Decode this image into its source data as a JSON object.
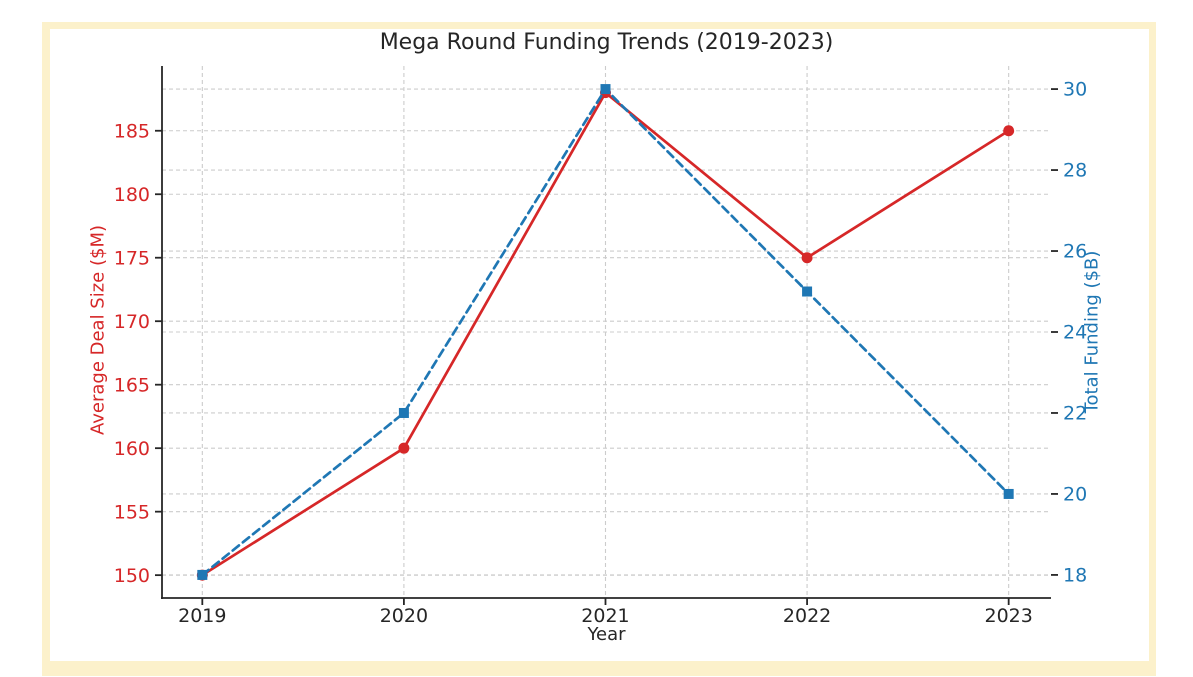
{
  "page": {
    "background": "#ffffff",
    "frame_border_color": "#fcf1cb",
    "text_color": "#262626",
    "spine_color": "#262626"
  },
  "chart_data": {
    "type": "line",
    "title": "Mega Round Funding Trends (2019-2023)",
    "xlabel": "Year",
    "categories": [
      "2019",
      "2020",
      "2021",
      "2022",
      "2023"
    ],
    "series": [
      {
        "name": "Average Deal Size ($M)",
        "axis": "left",
        "color": "#d62728",
        "line_style": "solid",
        "marker": "circle",
        "values": [
          150,
          160,
          188,
          175,
          185
        ]
      },
      {
        "name": "Total Funding ($B)",
        "axis": "right",
        "color": "#1f77b4",
        "line_style": "dashed",
        "marker": "square",
        "values": [
          18,
          22,
          30,
          25,
          20
        ]
      }
    ],
    "left_axis": {
      "label": "Average Deal Size ($M)",
      "color": "#d62728",
      "ticks": [
        150,
        155,
        160,
        165,
        170,
        175,
        180,
        185
      ],
      "ylim": [
        148.2,
        190.1
      ]
    },
    "right_axis": {
      "label": "Total Funding ($B)",
      "color": "#1f77b4",
      "ticks": [
        18,
        20,
        22,
        24,
        26,
        28,
        30
      ],
      "ylim": [
        17.43,
        30.57
      ]
    },
    "grid": {
      "show": true,
      "color": "#cccccc",
      "style": "dashed"
    },
    "legend_position": "none"
  }
}
